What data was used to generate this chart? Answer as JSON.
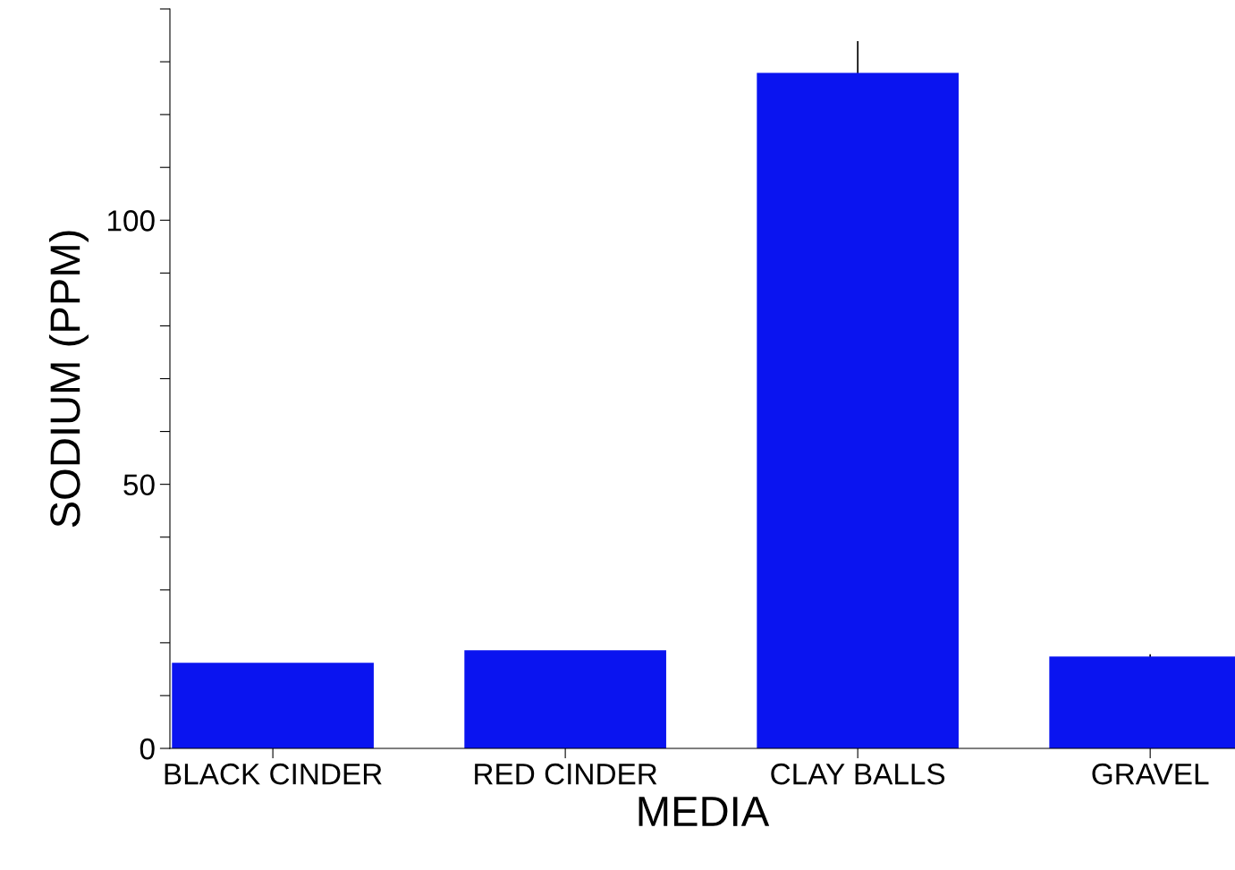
{
  "chart_data": {
    "type": "bar",
    "xlabel": "MEDIA",
    "ylabel": "SODIUM (PPM)",
    "categories": [
      "BLACK CINDER",
      "RED CINDER",
      "CLAY BALLS",
      "GRAVEL"
    ],
    "values": [
      16.2,
      18.6,
      127.9,
      17.4
    ],
    "errors": [
      null,
      null,
      6,
      0.4
    ],
    "color": "#0a14f0",
    "ylim": [
      0,
      140
    ],
    "yticks": [
      0,
      {
        "value": 10,
        "label": null
      },
      {
        "value": 20,
        "label": null
      },
      {
        "value": 30,
        "label": null
      },
      {
        "value": 40,
        "label": null
      },
      50,
      {
        "value": 60,
        "label": null
      },
      {
        "value": 70,
        "label": null
      },
      {
        "value": 80,
        "label": null
      },
      {
        "value": 90,
        "label": null
      },
      100,
      {
        "value": 110,
        "label": null
      },
      {
        "value": 120,
        "label": null
      },
      {
        "value": 130,
        "label": null
      },
      {
        "value": 140,
        "label": null
      }
    ],
    "grid": false,
    "legend": false
  }
}
